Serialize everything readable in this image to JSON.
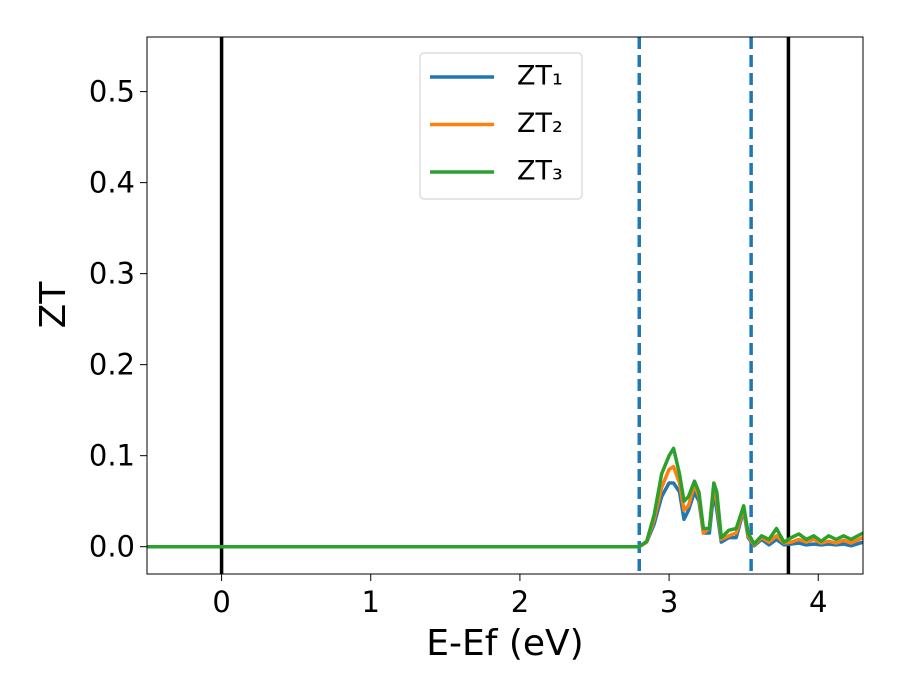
{
  "chart_data": {
    "type": "line",
    "xlabel": "E-Ef (eV)",
    "ylabel": "ZT",
    "x": [
      -0.5,
      2.8,
      2.85,
      2.9,
      2.95,
      3.0,
      3.03,
      3.07,
      3.1,
      3.13,
      3.17,
      3.2,
      3.23,
      3.27,
      3.3,
      3.32,
      3.35,
      3.4,
      3.45,
      3.5,
      3.53,
      3.57,
      3.62,
      3.67,
      3.72,
      3.77,
      3.82,
      3.87,
      3.92,
      3.97,
      4.02,
      4.07,
      4.12,
      4.17,
      4.22,
      4.3
    ],
    "series": [
      {
        "name": "ZT₁",
        "color": "#1f77b4",
        "values": [
          0,
          0,
          0.005,
          0.025,
          0.055,
          0.07,
          0.07,
          0.06,
          0.03,
          0.04,
          0.06,
          0.05,
          0.015,
          0.015,
          0.06,
          0.04,
          0.005,
          0.01,
          0.01,
          0.04,
          0.01,
          0.001,
          0.008,
          0.002,
          0.008,
          0.002,
          0.003,
          0.004,
          0.002,
          0.003,
          0.002,
          0.003,
          0.002,
          0.003,
          0.001,
          0.005
        ]
      },
      {
        "name": "ZT₂",
        "color": "#ff7f0e",
        "values": [
          0,
          0,
          0.005,
          0.03,
          0.065,
          0.085,
          0.088,
          0.07,
          0.04,
          0.045,
          0.068,
          0.055,
          0.015,
          0.02,
          0.065,
          0.05,
          0.008,
          0.012,
          0.015,
          0.042,
          0.012,
          0.002,
          0.01,
          0.005,
          0.012,
          0.004,
          0.005,
          0.008,
          0.005,
          0.008,
          0.004,
          0.006,
          0.004,
          0.007,
          0.004,
          0.01
        ]
      },
      {
        "name": "ZT₃",
        "color": "#2ca02c",
        "values": [
          0,
          0,
          0.006,
          0.035,
          0.08,
          0.1,
          0.108,
          0.08,
          0.05,
          0.055,
          0.072,
          0.06,
          0.02,
          0.02,
          0.07,
          0.06,
          0.01,
          0.018,
          0.02,
          0.045,
          0.015,
          0.003,
          0.012,
          0.008,
          0.02,
          0.005,
          0.01,
          0.014,
          0.008,
          0.012,
          0.006,
          0.012,
          0.008,
          0.012,
          0.008,
          0.015
        ]
      }
    ],
    "vlines": [
      {
        "x": 0,
        "color": "#000000",
        "dashed": false
      },
      {
        "x": 3.8,
        "color": "#000000",
        "dashed": false
      },
      {
        "x": 2.8,
        "color": "#1f77b4",
        "dashed": true
      },
      {
        "x": 3.55,
        "color": "#1f77b4",
        "dashed": true
      }
    ],
    "xlim": [
      -0.5,
      4.3
    ],
    "ylim": [
      -0.03,
      0.56
    ],
    "xticks": [
      0,
      1,
      2,
      3,
      4
    ],
    "yticks": [
      {
        "value": 0,
        "label": "0.0"
      },
      {
        "value": 0.1,
        "label": "0.1"
      },
      {
        "value": 0.2,
        "label": "0.2"
      },
      {
        "value": 0.3,
        "label": "0.3"
      },
      {
        "value": 0.4,
        "label": "0.4"
      },
      {
        "value": 0.5,
        "label": "0.5"
      }
    ],
    "legend": "upper center",
    "grid": false
  }
}
